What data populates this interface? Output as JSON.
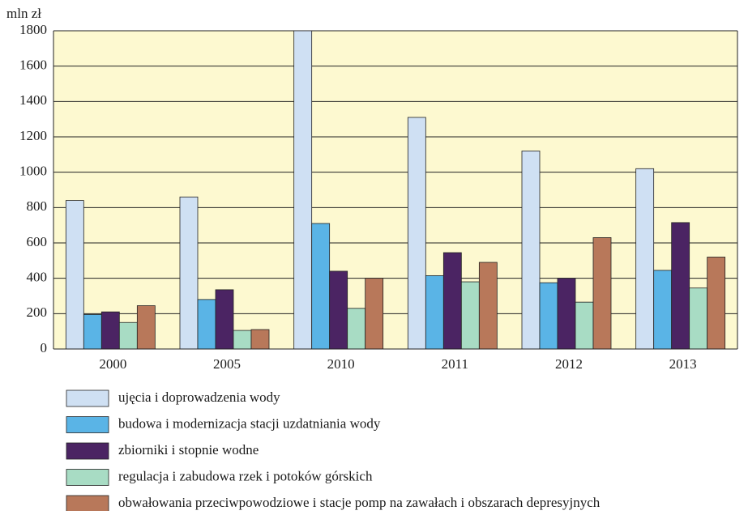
{
  "chart_data": {
    "type": "bar",
    "y_axis_label": "mln zł",
    "categories": [
      "2000",
      "2005",
      "2010",
      "2011",
      "2012",
      "2013"
    ],
    "series": [
      {
        "name": "ujęcia i doprowadzenia wody",
        "color": "#cfe0f3",
        "values": [
          840,
          860,
          1800,
          1310,
          1120,
          1020
        ]
      },
      {
        "name": "budowa i modernizacja stacji uzdatniania wody",
        "color": "#5ab4e6",
        "values": [
          195,
          280,
          710,
          415,
          375,
          445
        ]
      },
      {
        "name": "zbiorniki i stopnie wodne",
        "color": "#4b2463",
        "values": [
          210,
          335,
          440,
          545,
          400,
          715
        ]
      },
      {
        "name": "regulacja i zabudowa rzek i potoków górskich",
        "color": "#a8dcc4",
        "values": [
          150,
          105,
          230,
          380,
          265,
          345
        ]
      },
      {
        "name": "obwałowania przeciwpowodziowe i stacje pomp na zawałach i obszarach depresyjnych",
        "color": "#b8785a",
        "values": [
          245,
          110,
          400,
          490,
          630,
          520
        ]
      }
    ],
    "ylim": [
      0,
      1800
    ],
    "yticks": [
      0,
      200,
      400,
      600,
      800,
      1000,
      1200,
      1400,
      1600,
      1800
    ],
    "grid": true,
    "plot_background": "#fdf9d0"
  }
}
